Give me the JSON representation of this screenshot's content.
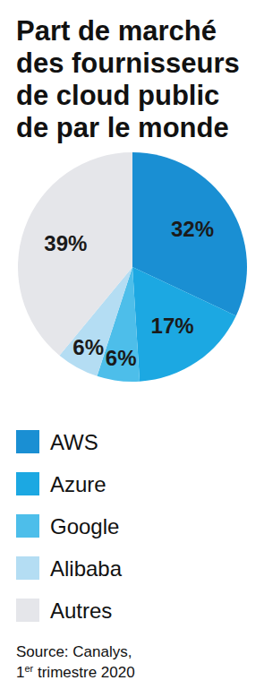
{
  "chart_data": {
    "type": "pie",
    "title": "Part de marché des fournisseurs de cloud public de par le monde",
    "categories": [
      "AWS",
      "Azure",
      "Google",
      "Alibaba",
      "Autres"
    ],
    "values": [
      32,
      17,
      6,
      6,
      39
    ],
    "value_labels": [
      "32%",
      "17%",
      "6%",
      "6%",
      "39%"
    ],
    "colors": [
      "#1a8fd3",
      "#1ca8e2",
      "#4dbeea",
      "#b4ddf3",
      "#e5e6ea"
    ],
    "data_labels": true,
    "legend": "bottom",
    "source": [
      "Source: Canalys,",
      "1er trimestre 2020"
    ]
  }
}
